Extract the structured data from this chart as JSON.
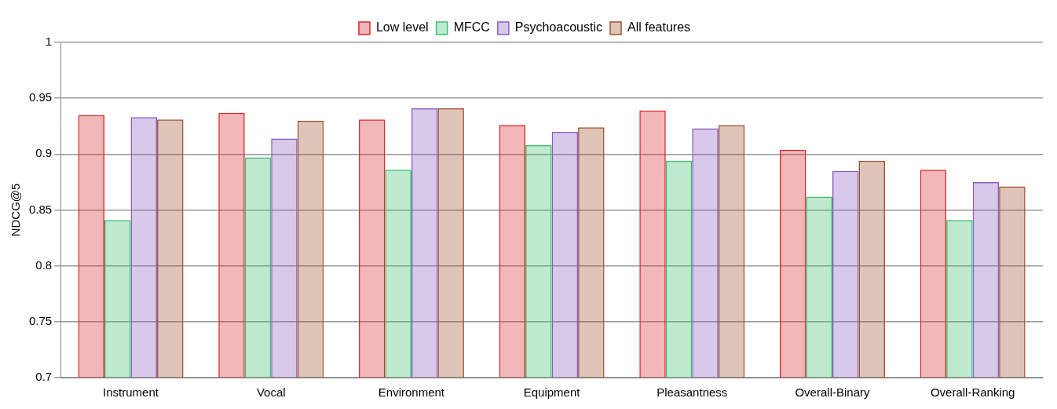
{
  "chart_data": {
    "type": "bar",
    "ylabel": "NDCG@5",
    "categories": [
      "Instrument",
      "Vocal",
      "Environment",
      "Equipment",
      "Pleasantness",
      "Overall-Binary",
      "Overall-Ranking"
    ],
    "series": [
      {
        "name": "Low level",
        "color": "#d9262b",
        "values": [
          0.935,
          0.937,
          0.931,
          0.926,
          0.939,
          0.904,
          0.886
        ]
      },
      {
        "name": "MFCC",
        "color": "#3cbf6e",
        "values": [
          0.841,
          0.897,
          0.886,
          0.908,
          0.894,
          0.862,
          0.841
        ]
      },
      {
        "name": "Psychoacoustic",
        "color": "#8a5cc2",
        "values": [
          0.933,
          0.914,
          0.941,
          0.92,
          0.923,
          0.885,
          0.875
        ]
      },
      {
        "name": "All features",
        "color": "#a0522d",
        "values": [
          0.931,
          0.93,
          0.941,
          0.924,
          0.926,
          0.894,
          0.871
        ]
      }
    ],
    "ylim": [
      0.7,
      1
    ],
    "yticks": [
      0.7,
      0.75,
      0.8,
      0.85,
      0.9,
      0.95,
      1
    ],
    "grid": "y",
    "legend": "top"
  }
}
